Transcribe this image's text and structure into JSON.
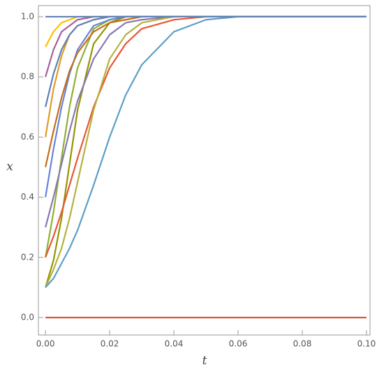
{
  "chart_data": {
    "type": "line",
    "x_label": "t",
    "y_label": "x",
    "x": [
      0,
      0.0025,
      0.005,
      0.0075,
      0.01,
      0.015,
      0.02,
      0.025,
      0.03,
      0.04,
      0.05,
      0.06,
      0.08,
      0.1
    ],
    "series": [
      {
        "color": "#929600",
        "values": [
          0.1,
          0.19,
          0.33,
          0.51,
          0.69,
          0.91,
          0.98,
          1.0,
          1.0,
          1.0,
          1.0,
          1.0,
          1.0,
          1.0
        ]
      },
      {
        "color": "#8FB032",
        "values": [
          0.2,
          0.35,
          0.53,
          0.7,
          0.83,
          0.96,
          0.99,
          1.0,
          1.0,
          1.0,
          1.0,
          1.0,
          1.0,
          1.0
        ]
      },
      {
        "color": "#E19C24",
        "values": [
          0.6,
          0.76,
          0.87,
          0.94,
          0.97,
          0.99,
          1.0,
          1.0,
          1.0,
          1.0,
          1.0,
          1.0,
          1.0,
          1.0
        ]
      },
      {
        "color": "#A5609D",
        "values": [
          0.8,
          0.89,
          0.95,
          0.97,
          0.99,
          1.0,
          1.0,
          1.0,
          1.0,
          1.0,
          1.0,
          1.0,
          1.0,
          1.0
        ]
      },
      {
        "color": "#FFBF00",
        "values": [
          0.9,
          0.95,
          0.98,
          0.99,
          1.0,
          1.0,
          1.0,
          1.0,
          1.0,
          1.0,
          1.0,
          1.0,
          1.0,
          1.0
        ]
      },
      {
        "color": "#E95536",
        "values": [
          0.2,
          0.27,
          0.35,
          0.44,
          0.53,
          0.7,
          0.83,
          0.91,
          0.96,
          0.99,
          1.0,
          1.0,
          1.0,
          1.0
        ]
      },
      {
        "color": "#8778B3",
        "values": [
          0.3,
          0.4,
          0.51,
          0.62,
          0.72,
          0.86,
          0.94,
          0.98,
          0.99,
          1.0,
          1.0,
          1.0,
          1.0,
          1.0
        ]
      },
      {
        "color": "#6685D9",
        "values": [
          0.4,
          0.56,
          0.7,
          0.81,
          0.89,
          0.97,
          0.99,
          1.0,
          1.0,
          1.0,
          1.0,
          1.0,
          1.0,
          1.0
        ]
      },
      {
        "color": "#C56E1A",
        "values": [
          0.5,
          0.62,
          0.73,
          0.82,
          0.88,
          0.95,
          0.98,
          0.99,
          1.0,
          1.0,
          1.0,
          1.0,
          1.0,
          1.0
        ]
      },
      {
        "color": "#5E81B5",
        "values": [
          0.7,
          0.81,
          0.89,
          0.94,
          0.97,
          0.99,
          1.0,
          1.0,
          1.0,
          1.0,
          1.0,
          1.0,
          1.0,
          1.0
        ]
      },
      {
        "color": "#B5B13D",
        "values": [
          0.1,
          0.16,
          0.23,
          0.33,
          0.45,
          0.69,
          0.86,
          0.94,
          0.98,
          1.0,
          1.0,
          1.0,
          1.0,
          1.0
        ]
      },
      {
        "color": "#5D9EC7",
        "values": [
          0.1,
          0.13,
          0.18,
          0.23,
          0.29,
          0.44,
          0.6,
          0.74,
          0.84,
          0.95,
          0.99,
          1.0,
          1.0,
          1.0
        ]
      },
      {
        "color": "#5E81B5",
        "values": [
          1.0,
          1.0,
          1.0,
          1.0,
          1.0,
          1.0,
          1.0,
          1.0,
          1.0,
          1.0,
          1.0,
          1.0,
          1.0,
          1.0
        ]
      },
      {
        "color": "#D9573A",
        "values": [
          0,
          0,
          0,
          0,
          0,
          0,
          0,
          0,
          0,
          0,
          0,
          0,
          0,
          0
        ]
      }
    ],
    "xlim": [
      -0.0022,
      0.1011
    ],
    "ylim": [
      -0.058,
      1.037
    ],
    "xticks": [
      {
        "value": 0,
        "label": "0.00"
      },
      {
        "value": 0.02,
        "label": "0.02"
      },
      {
        "value": 0.04,
        "label": "0.04"
      },
      {
        "value": 0.06,
        "label": "0.06"
      },
      {
        "value": 0.08,
        "label": "0.08"
      },
      {
        "value": 0.1,
        "label": "0.10"
      }
    ],
    "yticks": [
      {
        "value": 0,
        "label": "0.0"
      },
      {
        "value": 0.2,
        "label": "0.2"
      },
      {
        "value": 0.4,
        "label": "0.4"
      },
      {
        "value": 0.6,
        "label": "0.6"
      },
      {
        "value": 0.8,
        "label": "0.8"
      },
      {
        "value": 1,
        "label": "1.0"
      }
    ]
  }
}
